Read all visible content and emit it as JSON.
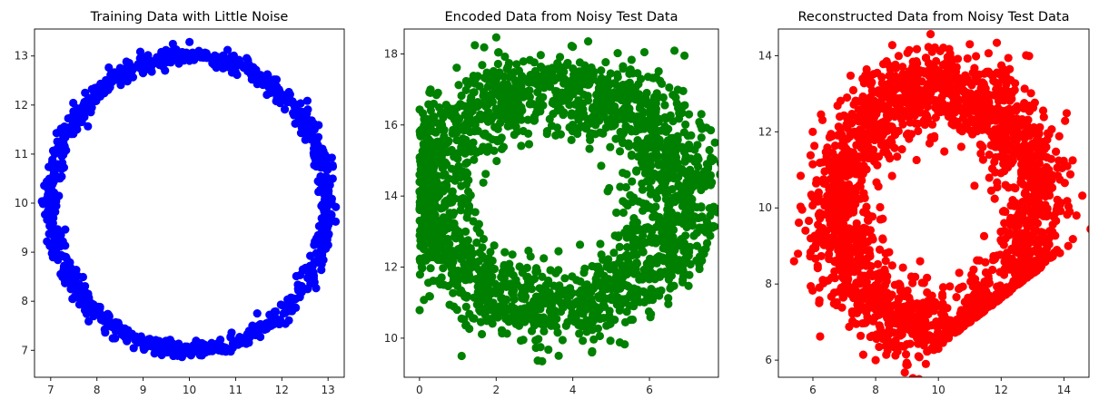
{
  "chart_data": [
    {
      "type": "scatter",
      "title": "Training Data with Little Noise",
      "xlabel": "",
      "ylabel": "",
      "xlim": [
        6.65,
        13.35
      ],
      "ylim": [
        6.45,
        13.55
      ],
      "xticks": [
        7,
        8,
        9,
        10,
        11,
        12,
        13
      ],
      "yticks": [
        7,
        8,
        9,
        10,
        11,
        12,
        13
      ],
      "grid": false,
      "color": "#0000ff",
      "shape": "ring",
      "series": [
        {
          "center": [
            10.0,
            10.0
          ],
          "radius": 3.0,
          "noise": 0.09,
          "count": 1000,
          "x_sample": [
            13.0,
            12.6,
            11.5,
            10.0,
            8.5,
            7.4,
            7.0,
            7.4,
            8.5,
            10.0,
            11.5,
            12.6
          ],
          "y_sample": [
            10.0,
            11.5,
            12.6,
            13.0,
            12.6,
            11.5,
            10.0,
            8.5,
            7.4,
            7.0,
            7.4,
            8.5
          ]
        }
      ]
    },
    {
      "type": "scatter",
      "title": "Encoded Data from Noisy Test Data",
      "xlabel": "",
      "ylabel": "",
      "xlim": [
        -0.4,
        7.8
      ],
      "ylim": [
        8.9,
        18.7
      ],
      "xticks": [
        0,
        2,
        4,
        6
      ],
      "yticks": [
        10,
        12,
        14,
        16,
        18
      ],
      "grid": false,
      "color": "#008000",
      "shape": "noisy-ring",
      "series": [
        {
          "center": [
            3.5,
            14.0
          ],
          "radius_x": 3.4,
          "radius_y": 3.1,
          "noise": 0.55,
          "count": 2200,
          "x_sample": [
            0.1,
            1.0,
            2.0,
            3.2,
            4.0,
            5.2,
            6.5,
            7.5,
            3.2,
            1.1,
            4.5
          ],
          "y_sample": [
            14.0,
            16.5,
            17.2,
            17.6,
            18.2,
            16.8,
            14.5,
            14.9,
            9.35,
            9.5,
            9.6
          ]
        }
      ]
    },
    {
      "type": "scatter",
      "title": "Reconstructed Data from Noisy Test Data",
      "xlabel": "",
      "ylabel": "",
      "xlim": [
        4.9,
        14.8
      ],
      "ylim": [
        5.55,
        14.7
      ],
      "xticks": [
        6,
        8,
        10,
        12,
        14
      ],
      "yticks": [
        6,
        8,
        10,
        12,
        14
      ],
      "grid": false,
      "color": "#ff0000",
      "shape": "clipped-ring",
      "series": [
        {
          "center": [
            10.0,
            10.0
          ],
          "radius": 3.2,
          "noise": 0.55,
          "count": 2200,
          "clip_line": {
            "x1": 9.6,
            "y1": 6.1,
            "x2": 13.7,
            "y2": 8.7
          },
          "x_sample": [
            5.4,
            6.2,
            7.5,
            9.8,
            11.0,
            13.2,
            14.4,
            9.6,
            10.0,
            8.0
          ],
          "y_sample": [
            8.6,
            7.5,
            12.8,
            14.1,
            14.3,
            11.5,
            9.8,
            5.9,
            6.3,
            6.0
          ]
        }
      ]
    }
  ]
}
